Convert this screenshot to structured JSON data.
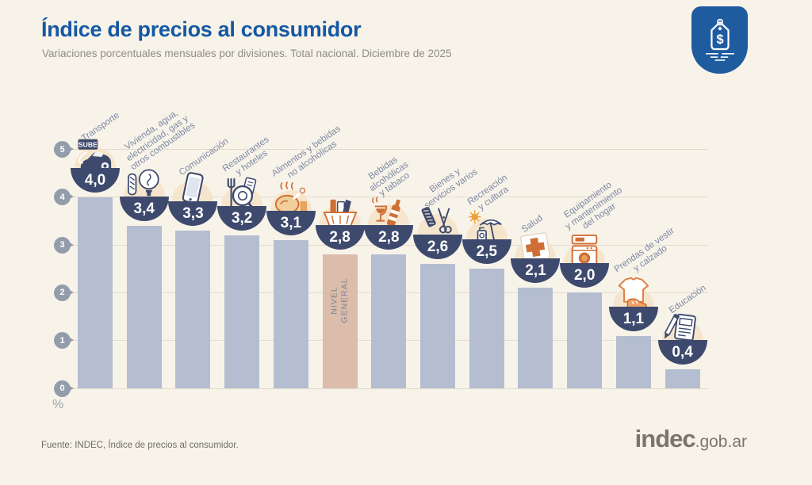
{
  "header": {
    "title": "Índice de precios al consumidor",
    "subtitle": "Variaciones porcentuales mensuales por divisiones. Total nacional. Diciembre de 2025"
  },
  "badge": {
    "symbol": "$",
    "icon": "price-tag-icon"
  },
  "chart_data": {
    "type": "bar",
    "title": "Índice de precios al consumidor",
    "subtitle": "Variaciones porcentuales mensuales por divisiones. Total nacional. Diciembre de 2025",
    "xlabel": "",
    "ylabel": "%",
    "ylim": [
      0,
      5
    ],
    "yticks": [
      0,
      1,
      2,
      3,
      4,
      5
    ],
    "grid": true,
    "sube_card_label": "SUBE",
    "highlight_category": "Nivel general",
    "categories": [
      "Transporte",
      "Vivienda, agua, electricidad, gas y otros combustibles",
      "Comunicación",
      "Restaurantes y hoteles",
      "Alimentos y bebidas no alcohólicas",
      "Nivel general",
      "Bebidas alcohólicas y tabaco",
      "Bienes y servicios varios",
      "Recreación y cultura",
      "Salud",
      "Equipamiento y mantenimiento del hogar",
      "Prendas de vestir y calzado",
      "Educación"
    ],
    "values": [
      4.0,
      3.4,
      3.3,
      3.2,
      3.1,
      2.8,
      2.8,
      2.6,
      2.5,
      2.1,
      2.0,
      1.1,
      0.4
    ],
    "bars": [
      {
        "id": "transporte",
        "category": "Transporte",
        "label_lines": [
          "Transporte"
        ],
        "value": 4.0,
        "display": "4,0",
        "icon": "car-sube-icon",
        "highlight": false
      },
      {
        "id": "vivienda-agua-electricidad-gas",
        "category": "Vivienda, agua, electricidad, gas y otros combustibles",
        "label_lines": [
          "Vivienda, agua,",
          "electricidad, gas y",
          "otros combustibles"
        ],
        "value": 3.4,
        "display": "3,4",
        "icon": "lightbulb-utilities-icon",
        "highlight": false
      },
      {
        "id": "comunicacion",
        "category": "Comunicación",
        "label_lines": [
          "Comunicación"
        ],
        "value": 3.3,
        "display": "3,3",
        "icon": "smartphone-icon",
        "highlight": false
      },
      {
        "id": "restaurantes-hoteles",
        "category": "Restaurantes y hoteles",
        "label_lines": [
          "Restaurantes",
          "y hoteles"
        ],
        "value": 3.2,
        "display": "3,2",
        "icon": "fork-plate-icon",
        "highlight": false
      },
      {
        "id": "alimentos-bebidas-no-alcoholicas",
        "category": "Alimentos y bebidas no alcohólicas",
        "label_lines": [
          "Alimentos y bebidas",
          "no alcohólicas"
        ],
        "value": 3.1,
        "display": "3,1",
        "icon": "roast-chicken-icon",
        "highlight": false
      },
      {
        "id": "nivel-general",
        "category": "Nivel general",
        "label_lines": [],
        "in_bar_label": [
          "NIVEL",
          "GENERAL"
        ],
        "value": 2.8,
        "display": "2,8",
        "icon": "grocery-basket-icon",
        "highlight": true
      },
      {
        "id": "bebidas-alcoholicas-tabaco",
        "category": "Bebidas alcohólicas y tabaco",
        "label_lines": [
          "Bebidas",
          "alcohólicas",
          "y tabaco"
        ],
        "value": 2.8,
        "display": "2,8",
        "icon": "wine-bottle-glass-icon",
        "highlight": false
      },
      {
        "id": "bienes-servicios-varios",
        "category": "Bienes y servicios varios",
        "label_lines": [
          "Bienes y",
          "servicios varios"
        ],
        "value": 2.6,
        "display": "2,6",
        "icon": "comb-scissors-icon",
        "highlight": false
      },
      {
        "id": "recreacion-cultura",
        "category": "Recreación y cultura",
        "label_lines": [
          "Recreación",
          "y cultura"
        ],
        "value": 2.5,
        "display": "2,5",
        "icon": "beach-umbrella-sun-icon",
        "highlight": false
      },
      {
        "id": "salud",
        "category": "Salud",
        "label_lines": [
          "Salud"
        ],
        "value": 2.1,
        "display": "2,1",
        "icon": "medical-cross-icon",
        "highlight": false
      },
      {
        "id": "equipamiento-mantenimiento-hogar",
        "category": "Equipamiento y mantenimiento del hogar",
        "label_lines": [
          "Equipamiento",
          "y mantenimiento",
          "del hogar"
        ],
        "value": 2.0,
        "display": "2,0",
        "icon": "washing-machine-icon",
        "highlight": false
      },
      {
        "id": "prendas-vestir-calzado",
        "category": "Prendas de vestir y calzado",
        "label_lines": [
          "Prendas de vestir",
          "y calzado"
        ],
        "value": 1.1,
        "display": "1,1",
        "icon": "tshirt-shoe-icon",
        "highlight": false
      },
      {
        "id": "educacion",
        "category": "Educación",
        "label_lines": [
          "Educación"
        ],
        "value": 0.4,
        "display": "0,4",
        "icon": "notebook-pencil-icon",
        "highlight": false
      }
    ]
  },
  "colors": {
    "background": "#f8f3e9",
    "bar": "#b5bed1",
    "highlight_bar": "#dcbcaa",
    "bubble_navy": "#3e4a6d",
    "title_blue": "#1558a3",
    "badge_blue": "#1e5c9f",
    "label_gray_blue": "#7c89a3",
    "tick_gray": "#939cab",
    "orange_accent": "#cf6f35"
  },
  "footer": {
    "source": "Fuente: INDEC, Índice de precios al consumidor.",
    "logo_main": "indec",
    "logo_suffix": ".gob.ar"
  }
}
